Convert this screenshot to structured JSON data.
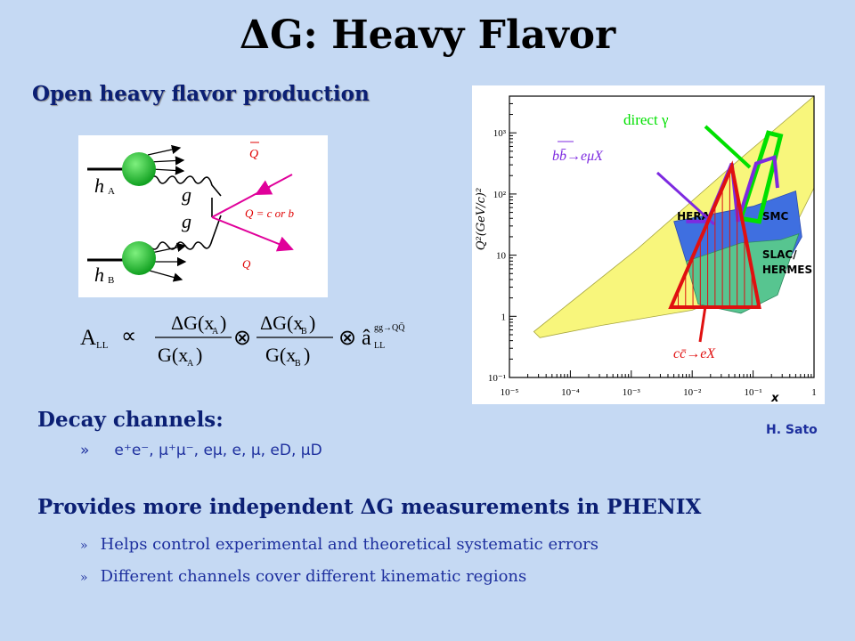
{
  "slide": {
    "title": "ΔG: Heavy Flavor",
    "subtitle": "Open heavy flavor production",
    "credit": "H. Sato"
  },
  "feynman": {
    "hA": "h",
    "hA_sub": "A",
    "hB": "h",
    "hB_sub": "B",
    "gluon1": "g",
    "gluon2": "g",
    "qbar": "Q",
    "q": "Q",
    "q_eq": "Q = c or b"
  },
  "equation": {
    "lhs": "A",
    "lhs_sub": "LL",
    "prop": "∝",
    "num1": "ΔG(x",
    "num1_sub": "A",
    "num1_end": ")",
    "den1": "G(x",
    "den1_sub": "A",
    "den1_end": ")",
    "otimes1": "⊗",
    "num2": "ΔG(x",
    "num2_sub": "B",
    "num2_end": ")",
    "den2": "G(x",
    "den2_sub": "B",
    "den2_end": ")",
    "otimes2": "⊗",
    "ahat": "â",
    "ahat_sub": "LL",
    "ahat_sup": "gg→QQ̄"
  },
  "plot": {
    "ylabel": "Q²(GeV/c)²",
    "xlabel": "x",
    "x_ticks": [
      "10⁻⁵",
      "10⁻⁴",
      "10⁻³",
      "10⁻²",
      "10⁻¹",
      "1"
    ],
    "y_ticks": [
      "10⁻¹",
      "1",
      "10",
      "10²",
      "10³"
    ],
    "x_log_range": [
      -5,
      0
    ],
    "y_log_range": [
      -1,
      3.6
    ],
    "regions": [
      "HERA",
      "SMC",
      "SLAC/",
      "HERMES"
    ],
    "label_direct": "direct γ",
    "label_bb": "bb̄→eμX",
    "label_cc": "cc̄→eX",
    "colors": {
      "hera": "#f8f67c",
      "smc": "#3f6fe0",
      "slac": "#57c590",
      "direct": "#00e000",
      "bb": "#7d2ae0",
      "cc": "#e01010"
    }
  },
  "decay": {
    "heading": "Decay channels:",
    "bullet": "»",
    "channels": "e⁺e⁻, μ⁺μ⁻, eμ, e, μ, eD, μD"
  },
  "provides": {
    "heading": "Provides more independent ΔG measurements in PHENIX",
    "bullet": "»",
    "item1": "Helps control experimental and theoretical systematic errors",
    "item2": "Different channels cover different kinematic regions"
  }
}
